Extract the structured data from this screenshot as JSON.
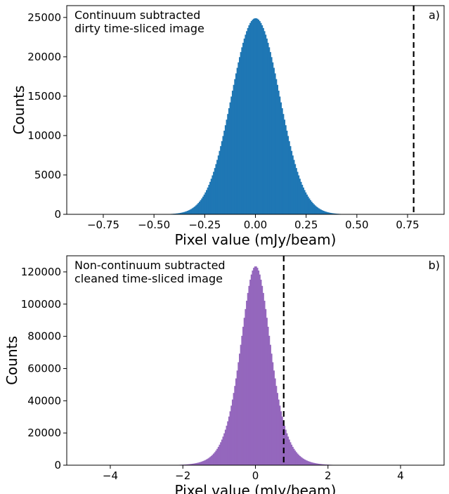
{
  "chart_data": [
    {
      "type": "histogram",
      "panel_label": "a)",
      "annotation_lines": [
        "Continuum subtracted",
        "dirty time-sliced image"
      ],
      "xlabel": "Pixel value (mJy/beam)",
      "ylabel": "Counts",
      "xlim": [
        -0.93,
        0.93
      ],
      "ylim": [
        0,
        26500
      ],
      "xticks": [
        -0.75,
        -0.5,
        -0.25,
        0.0,
        0.25,
        0.5,
        0.75
      ],
      "xtick_labels": [
        "−0.75",
        "−0.50",
        "−0.25",
        "0.00",
        "0.25",
        "0.50",
        "0.75"
      ],
      "yticks": [
        0,
        5000,
        10000,
        15000,
        20000,
        25000
      ],
      "ytick_labels": [
        "0",
        "5000",
        "10000",
        "15000",
        "20000",
        "25000"
      ],
      "distribution": {
        "shape": "gaussian",
        "peak_count": 24900,
        "center": 0.0,
        "sigma": 0.118
      },
      "threshold_line": 0.78,
      "color": "#1f77b4"
    },
    {
      "type": "histogram",
      "panel_label": "b)",
      "annotation_lines": [
        "Non-continuum subtracted",
        "cleaned time-sliced image"
      ],
      "xlabel": "Pixel value (mJy/beam)",
      "ylabel": "Counts",
      "xlim": [
        -5.2,
        5.2
      ],
      "ylim": [
        0,
        130000
      ],
      "xticks": [
        -4,
        -2,
        0,
        2,
        4
      ],
      "xtick_labels": [
        "−4",
        "−2",
        "0",
        "2",
        "4"
      ],
      "yticks": [
        0,
        20000,
        40000,
        60000,
        80000,
        100000,
        120000
      ],
      "ytick_labels": [
        "0",
        "20000",
        "40000",
        "60000",
        "80000",
        "100000",
        "120000"
      ],
      "distribution": {
        "shape": "peaked",
        "peak_count": 123500,
        "center": 0.0,
        "scale": 0.55
      },
      "threshold_line": 0.78,
      "color": "#9467bd"
    }
  ]
}
